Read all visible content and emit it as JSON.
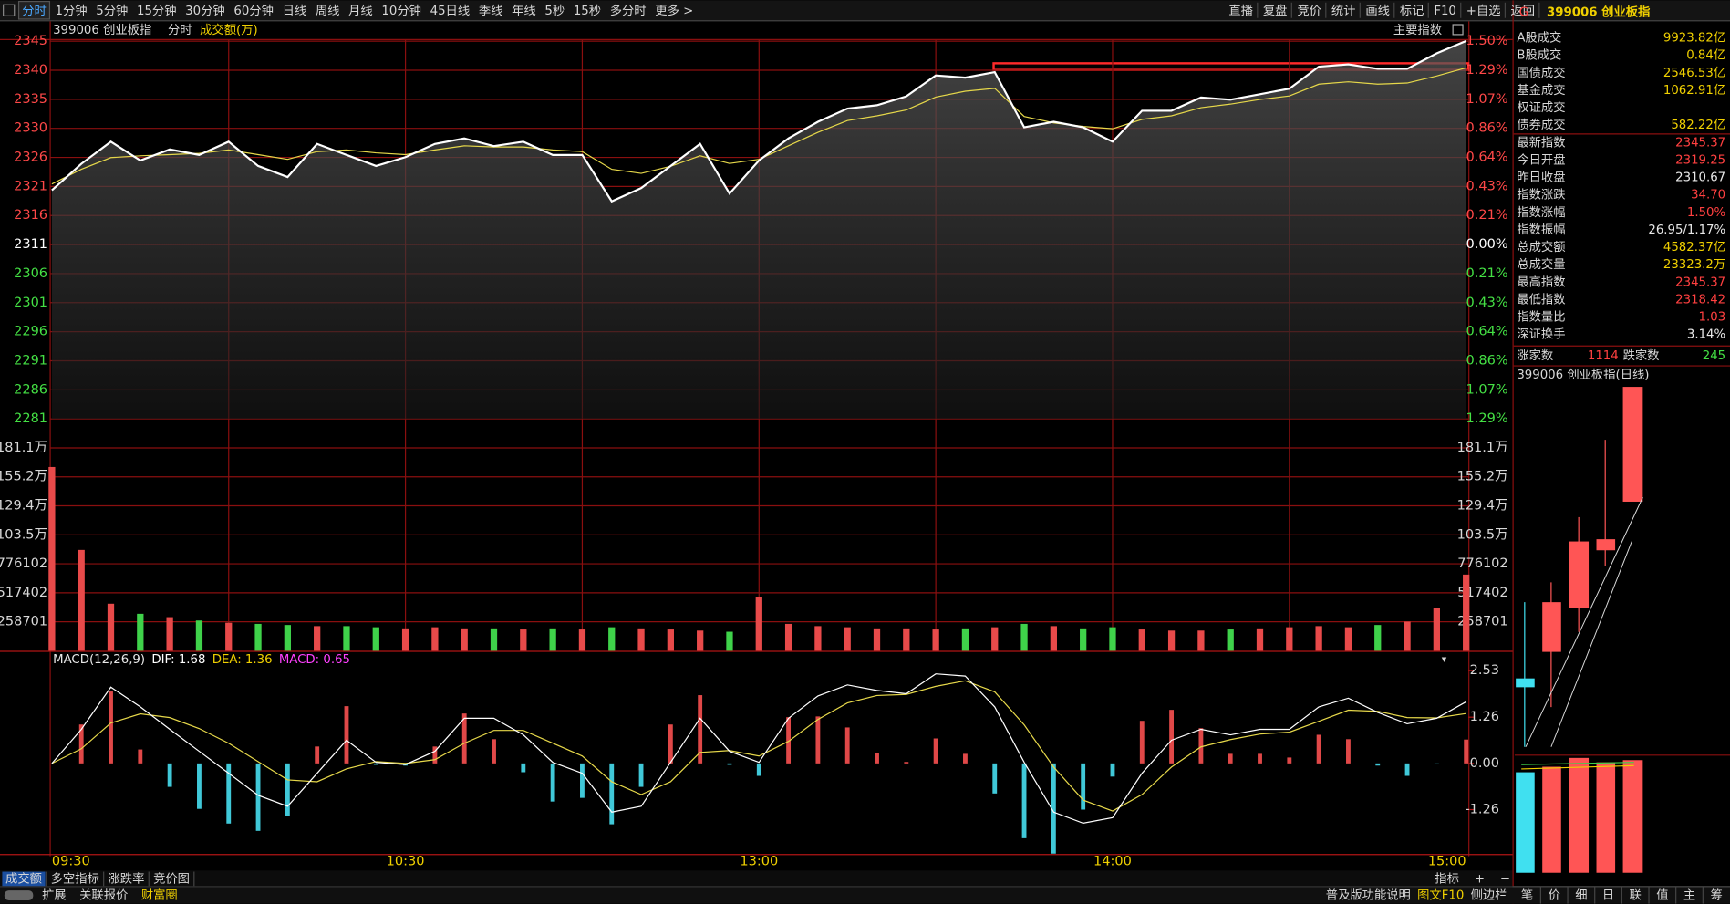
{
  "toolbar": {
    "periods": [
      "分时",
      "1分钟",
      "5分钟",
      "15分钟",
      "30分钟",
      "60分钟",
      "日线",
      "周线",
      "月线",
      "10分钟",
      "45日线",
      "季线",
      "年线",
      "5秒",
      "15秒",
      "多分时",
      "更多 >"
    ],
    "actions": [
      "直播",
      "复盘",
      "竞价",
      "统计",
      "画线",
      "标记",
      "F10",
      "+自选",
      "返回"
    ]
  },
  "chart_header": {
    "code_name": "399006 创业板指",
    "mode": "分时",
    "indicator": "成交额(万)",
    "index_menu": "主要指数"
  },
  "intraday": {
    "x": [
      "09:30",
      "09:35",
      "09:40",
      "09:45",
      "09:50",
      "09:55",
      "10:00",
      "10:05",
      "10:10",
      "10:15",
      "10:20",
      "10:25",
      "10:30",
      "10:35",
      "10:40",
      "10:45",
      "10:50",
      "10:55",
      "11:00",
      "11:05",
      "11:10",
      "11:15",
      "11:20",
      "11:25",
      "13:00",
      "13:05",
      "13:10",
      "13:15",
      "13:20",
      "13:25",
      "13:30",
      "13:35",
      "13:40",
      "13:45",
      "13:50",
      "13:55",
      "14:00",
      "14:05",
      "14:10",
      "14:15",
      "14:20",
      "14:25",
      "14:30",
      "14:35",
      "14:40",
      "14:45",
      "14:50",
      "14:55",
      "15:00"
    ],
    "time_ticks": [
      "09:30",
      "10:30",
      "13:00",
      "14:00",
      "15:00"
    ],
    "price_axis": {
      "ylim": [
        2280.96,
        2345.33
      ],
      "base": 2310.67,
      "ticks": [
        {
          "value": 2345.33,
          "label": "2345"
        },
        {
          "value": 2340.38,
          "label": "2340"
        },
        {
          "value": 2335.43,
          "label": "2335"
        },
        {
          "value": 2330.48,
          "label": "2330"
        },
        {
          "value": 2325.52,
          "label": "2326"
        },
        {
          "value": 2320.57,
          "label": "2321"
        },
        {
          "value": 2315.62,
          "label": "2316"
        },
        {
          "value": 2310.67,
          "label": "2311"
        },
        {
          "value": 2305.72,
          "label": "2306"
        },
        {
          "value": 2300.77,
          "label": "2301"
        },
        {
          "value": 2295.82,
          "label": "2296"
        },
        {
          "value": 2290.86,
          "label": "2291"
        },
        {
          "value": 2285.91,
          "label": "2286"
        },
        {
          "value": 2280.96,
          "label": "2281"
        }
      ],
      "pct_labels": [
        "1.50%",
        "1.29%",
        "1.07%",
        "0.86%",
        "0.64%",
        "0.43%",
        "0.21%",
        "0.00%",
        "0.21%",
        "0.43%",
        "0.64%",
        "0.86%",
        "1.07%",
        "1.29%"
      ]
    },
    "price": {
      "color": "#ffffff",
      "values": [
        2319.92,
        2324.44,
        2328.2,
        2325.0,
        2326.89,
        2325.95,
        2328.2,
        2324.06,
        2322.18,
        2327.83,
        2325.95,
        2324.06,
        2325.57,
        2327.83,
        2328.77,
        2327.45,
        2328.2,
        2325.95,
        2325.95,
        2318.04,
        2320.3,
        2324.06,
        2327.83,
        2319.36,
        2325.0,
        2328.77,
        2331.59,
        2333.85,
        2334.41,
        2335.92,
        2339.5,
        2339.12,
        2340.06,
        2330.65,
        2331.59,
        2330.65,
        2328.2,
        2333.47,
        2333.47,
        2335.73,
        2335.36,
        2336.3,
        2337.24,
        2341.0,
        2341.38,
        2340.62,
        2340.62,
        2343.26,
        2345.37
      ]
    },
    "average": {
      "color": "#e6d84a",
      "values": [
        2321.0,
        2323.5,
        2325.5,
        2325.8,
        2326.0,
        2326.2,
        2326.8,
        2326.0,
        2325.2,
        2326.5,
        2326.8,
        2326.3,
        2326.0,
        2326.8,
        2327.5,
        2327.3,
        2327.3,
        2326.8,
        2326.5,
        2323.5,
        2322.8,
        2324.0,
        2325.8,
        2324.5,
        2325.2,
        2327.5,
        2329.8,
        2331.8,
        2332.6,
        2333.6,
        2335.8,
        2336.8,
        2337.3,
        2332.5,
        2331.4,
        2330.8,
        2330.4,
        2332.0,
        2332.6,
        2334.0,
        2334.6,
        2335.4,
        2336.0,
        2338.0,
        2338.4,
        2338.0,
        2338.2,
        2339.4,
        2340.8
      ]
    },
    "volume": {
      "ylim": [
        0,
        2069608
      ],
      "ticks": [
        {
          "value": 1810907,
          "label": "181.1万"
        },
        {
          "value": 1552206,
          "label": "155.2万"
        },
        {
          "value": 1293505,
          "label": "129.4万"
        },
        {
          "value": 1034804,
          "label": "103.5万"
        },
        776102,
        517402,
        258701
      ],
      "up_color": "#e84a4a",
      "down_color": "#3fd24a",
      "values": [
        1640000,
        900000,
        420000,
        330000,
        300000,
        270000,
        250000,
        240000,
        230000,
        220000,
        220000,
        210000,
        200000,
        210000,
        200000,
        200000,
        190000,
        200000,
        190000,
        210000,
        200000,
        190000,
        180000,
        170000,
        480000,
        240000,
        220000,
        210000,
        200000,
        200000,
        190000,
        200000,
        210000,
        240000,
        220000,
        200000,
        210000,
        190000,
        180000,
        180000,
        190000,
        200000,
        210000,
        220000,
        210000,
        230000,
        260000,
        380000,
        680000
      ]
    }
  },
  "macd": {
    "title": "MACD(12,26,9)",
    "dif_label": "DIF: 1.68",
    "dea_label": "DEA: 1.36",
    "macd_label": "MACD: 0.65",
    "ylim": [
      -2.47,
      3.01
    ],
    "ticks": [
      2.53,
      1.26,
      {
        "value": 0,
        "label": "0.00"
      },
      -1.26
    ],
    "dif": {
      "color": "#ffffff",
      "values": [
        0,
        0.93,
        2.08,
        1.54,
        0.93,
        0.33,
        -0.27,
        -0.87,
        -1.17,
        -0.27,
        0.63,
        0.03,
        -0.03,
        0.33,
        1.23,
        1.23,
        0.78,
        0.03,
        -0.27,
        -1.33,
        -1.17,
        0.03,
        1.23,
        0.33,
        0.03,
        1.23,
        1.84,
        2.14,
        1.99,
        1.9,
        2.44,
        2.38,
        1.54,
        0.03,
        -1.33,
        -1.63,
        -1.48,
        -0.27,
        0.63,
        0.93,
        0.78,
        0.93,
        0.93,
        1.54,
        1.78,
        1.39,
        1.08,
        1.23,
        1.68
      ]
    },
    "dea": {
      "color": "#e6d84a",
      "values": [
        0,
        0.4,
        1.1,
        1.35,
        1.25,
        0.95,
        0.55,
        0.05,
        -0.45,
        -0.5,
        -0.15,
        0.05,
        0.0,
        0.1,
        0.55,
        0.9,
        0.9,
        0.55,
        0.2,
        -0.5,
        -0.85,
        -0.5,
        0.3,
        0.35,
        0.2,
        0.6,
        1.2,
        1.65,
        1.85,
        1.88,
        2.1,
        2.25,
        1.95,
        1.05,
        -0.1,
        -1.0,
        -1.3,
        -0.85,
        -0.1,
        0.45,
        0.65,
        0.8,
        0.85,
        1.15,
        1.45,
        1.42,
        1.25,
        1.24,
        1.36
      ]
    },
    "hist": {
      "up_color": "#e04848",
      "down_color": "#40c8d8",
      "values": [
        0,
        1.06,
        1.96,
        0.38,
        -0.64,
        -1.24,
        -1.64,
        -1.84,
        -1.44,
        0.46,
        1.56,
        -0.04,
        -0.06,
        0.46,
        1.36,
        0.66,
        -0.24,
        -1.04,
        -0.94,
        -1.66,
        -0.64,
        1.06,
        1.86,
        -0.04,
        -0.34,
        1.26,
        1.28,
        0.98,
        0.28,
        0.04,
        0.68,
        0.26,
        -0.82,
        -2.04,
        -2.46,
        -1.26,
        -0.36,
        1.16,
        1.46,
        0.96,
        0.26,
        0.26,
        0.16,
        0.78,
        0.66,
        -0.06,
        -0.34,
        -0.02,
        0.65
      ]
    }
  },
  "bottom_tabs": {
    "left": [
      "成交额",
      "多空指标",
      "涨跌率",
      "竞价图"
    ],
    "right": [
      "指标",
      "+",
      "−"
    ]
  },
  "status_bar": {
    "left": [
      "扩展",
      "关联报价",
      "财富圈"
    ],
    "right": [
      "普及版功能说明",
      "图文F10",
      "侧边栏"
    ]
  },
  "side_panel": {
    "marker": "G",
    "title": "399006 创业板指",
    "amounts": [
      {
        "label": "A股成交",
        "value": "9923.82亿",
        "color": "#f0d000"
      },
      {
        "label": "B股成交",
        "value": "0.84亿",
        "color": "#f0d000"
      },
      {
        "label": "国债成交",
        "value": "2546.53亿",
        "color": "#f0d000"
      },
      {
        "label": "基金成交",
        "value": "1062.91亿",
        "color": "#f0d000"
      },
      {
        "label": "权证成交"
      },
      {
        "label": "债券成交",
        "value": "582.22亿",
        "color": "#f0d000"
      }
    ],
    "stats": [
      {
        "label": "最新指数",
        "value": "2345.37",
        "color": "#ff4040"
      },
      {
        "label": "今日开盘",
        "value": "2319.25",
        "color": "#ff4040"
      },
      {
        "label": "昨日收盘",
        "value": "2310.67",
        "color": "#e8e8e8"
      },
      {
        "label": "指数涨跌",
        "value": "34.70",
        "color": "#ff4040"
      },
      {
        "label": "指数涨幅",
        "value": "1.50%",
        "color": "#ff4040"
      },
      {
        "label": "指数振幅",
        "value": "26.95/1.17%",
        "color": "#e8e8e8"
      },
      {
        "label": "总成交额",
        "value": "4582.37亿",
        "color": "#f0d000"
      },
      {
        "label": "总成交量",
        "value": "23323.2万",
        "color": "#f0d000"
      },
      {
        "label": "最高指数",
        "value": "2345.37",
        "color": "#ff4040"
      },
      {
        "label": "最低指数",
        "value": "2318.42",
        "color": "#ff4040"
      },
      {
        "label": "指数量比",
        "value": "1.03",
        "color": "#ff4040"
      },
      {
        "label": "深证换手",
        "value": "3.14%",
        "color": "#e8e8e8"
      }
    ],
    "breadth": {
      "up_label": "涨家数",
      "up_count": "1114",
      "down_label": "跌家数",
      "down_count": "245"
    },
    "daily_title": "399006 创业板指(日线)",
    "tabs": [
      "笔",
      "价",
      "细",
      "日",
      "联",
      "值",
      "主",
      "筹"
    ]
  }
}
